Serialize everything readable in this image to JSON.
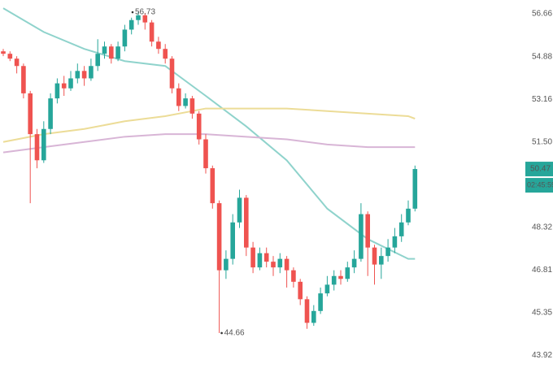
{
  "chart_data": {
    "type": "candlestick",
    "log_scale": true,
    "ylim": [
      43.51,
      57.25
    ],
    "yticks": [
      56.66,
      54.88,
      53.16,
      {
        "value": 51.5,
        "label": "51.50"
      },
      48.32,
      46.81,
      45.35,
      43.92
    ],
    "up_color": "#26a69a",
    "down_color": "#ef5350",
    "open": [
      55.1,
      55.0,
      54.8,
      54.5,
      53.4,
      51.8,
      50.8,
      52.0,
      53.2,
      53.8,
      53.6,
      54.0,
      54.3,
      54.0,
      54.5,
      55.0,
      55.3,
      54.8,
      55.3,
      56.0,
      56.4,
      56.6,
      56.3,
      55.5,
      55.2,
      54.8,
      53.6,
      52.9,
      53.2,
      52.6,
      51.6,
      50.5,
      49.2,
      46.8,
      47.2,
      48.5,
      49.4,
      47.6,
      46.9,
      47.4,
      47.1,
      46.9,
      47.2,
      46.8,
      46.4,
      45.8,
      45.0,
      45.4,
      46.0,
      46.3,
      46.6,
      46.5,
      46.9,
      47.2,
      48.8,
      47.6,
      47.0,
      47.3,
      47.6,
      48.0,
      48.5,
      49.0
    ],
    "high": [
      55.2,
      55.1,
      54.9,
      54.6,
      53.5,
      52.0,
      52.3,
      53.4,
      54.0,
      54.1,
      54.3,
      54.6,
      54.5,
      54.8,
      55.6,
      55.5,
      55.4,
      55.5,
      56.2,
      56.5,
      56.73,
      56.7,
      56.4,
      55.7,
      55.4,
      54.9,
      53.8,
      53.4,
      53.3,
      52.7,
      51.8,
      50.6,
      49.3,
      47.5,
      48.8,
      49.7,
      49.5,
      47.8,
      47.6,
      47.6,
      47.3,
      47.4,
      47.3,
      46.9,
      46.5,
      45.9,
      45.6,
      46.2,
      46.6,
      46.8,
      46.8,
      47.1,
      47.5,
      49.2,
      48.9,
      47.7,
      47.6,
      47.9,
      48.3,
      48.8,
      49.3,
      50.6
    ],
    "low": [
      54.9,
      54.7,
      54.2,
      53.2,
      49.2,
      50.5,
      50.7,
      51.8,
      53.0,
      53.3,
      53.5,
      53.8,
      53.7,
      53.9,
      54.3,
      54.8,
      54.6,
      54.7,
      55.1,
      55.8,
      56.2,
      56.0,
      55.3,
      55.0,
      54.6,
      53.4,
      52.7,
      52.8,
      52.4,
      51.4,
      50.3,
      49.0,
      44.66,
      46.5,
      47.0,
      48.3,
      47.3,
      46.7,
      46.8,
      46.9,
      46.6,
      46.7,
      46.2,
      46.2,
      45.6,
      44.8,
      44.9,
      45.3,
      45.9,
      46.1,
      46.3,
      46.4,
      46.7,
      47.1,
      46.6,
      46.3,
      46.5,
      47.1,
      47.4,
      47.8,
      48.4,
      48.9
    ],
    "close": [
      55.0,
      54.8,
      54.5,
      53.4,
      51.8,
      50.8,
      52.0,
      53.2,
      53.8,
      53.6,
      54.0,
      54.3,
      54.0,
      54.5,
      55.0,
      55.3,
      54.8,
      55.3,
      56.0,
      56.4,
      56.6,
      56.3,
      55.5,
      55.2,
      54.8,
      53.6,
      52.9,
      53.2,
      52.6,
      51.6,
      50.5,
      49.2,
      46.8,
      47.2,
      48.5,
      49.4,
      47.6,
      46.9,
      47.4,
      47.1,
      46.9,
      47.2,
      46.8,
      46.4,
      45.8,
      45.0,
      45.4,
      46.0,
      46.3,
      46.6,
      46.5,
      46.9,
      47.2,
      48.8,
      47.6,
      47.0,
      47.3,
      47.6,
      48.0,
      48.5,
      49.0,
      50.47
    ],
    "overlays": [
      {
        "color": "#8fd3cc",
        "x": [
          0,
          6,
          12,
          18,
          24,
          30,
          36,
          42,
          48,
          54,
          60,
          61
        ],
        "values": [
          56.9,
          55.9,
          55.2,
          54.7,
          54.5,
          53.3,
          52.1,
          50.8,
          49.0,
          47.9,
          47.2,
          47.2
        ]
      },
      {
        "color": "#ecdc97",
        "x": [
          0,
          6,
          12,
          18,
          24,
          30,
          36,
          42,
          48,
          54,
          60,
          61
        ],
        "values": [
          51.5,
          51.8,
          52.0,
          52.3,
          52.5,
          52.8,
          52.8,
          52.8,
          52.7,
          52.6,
          52.5,
          52.4
        ]
      },
      {
        "color": "#d8b5d6",
        "x": [
          0,
          6,
          12,
          18,
          24,
          30,
          36,
          42,
          48,
          54,
          60,
          61
        ],
        "values": [
          51.1,
          51.3,
          51.5,
          51.7,
          51.8,
          51.8,
          51.7,
          51.6,
          51.4,
          51.3,
          51.3,
          51.3
        ]
      }
    ],
    "countdown": "02:45:59"
  }
}
